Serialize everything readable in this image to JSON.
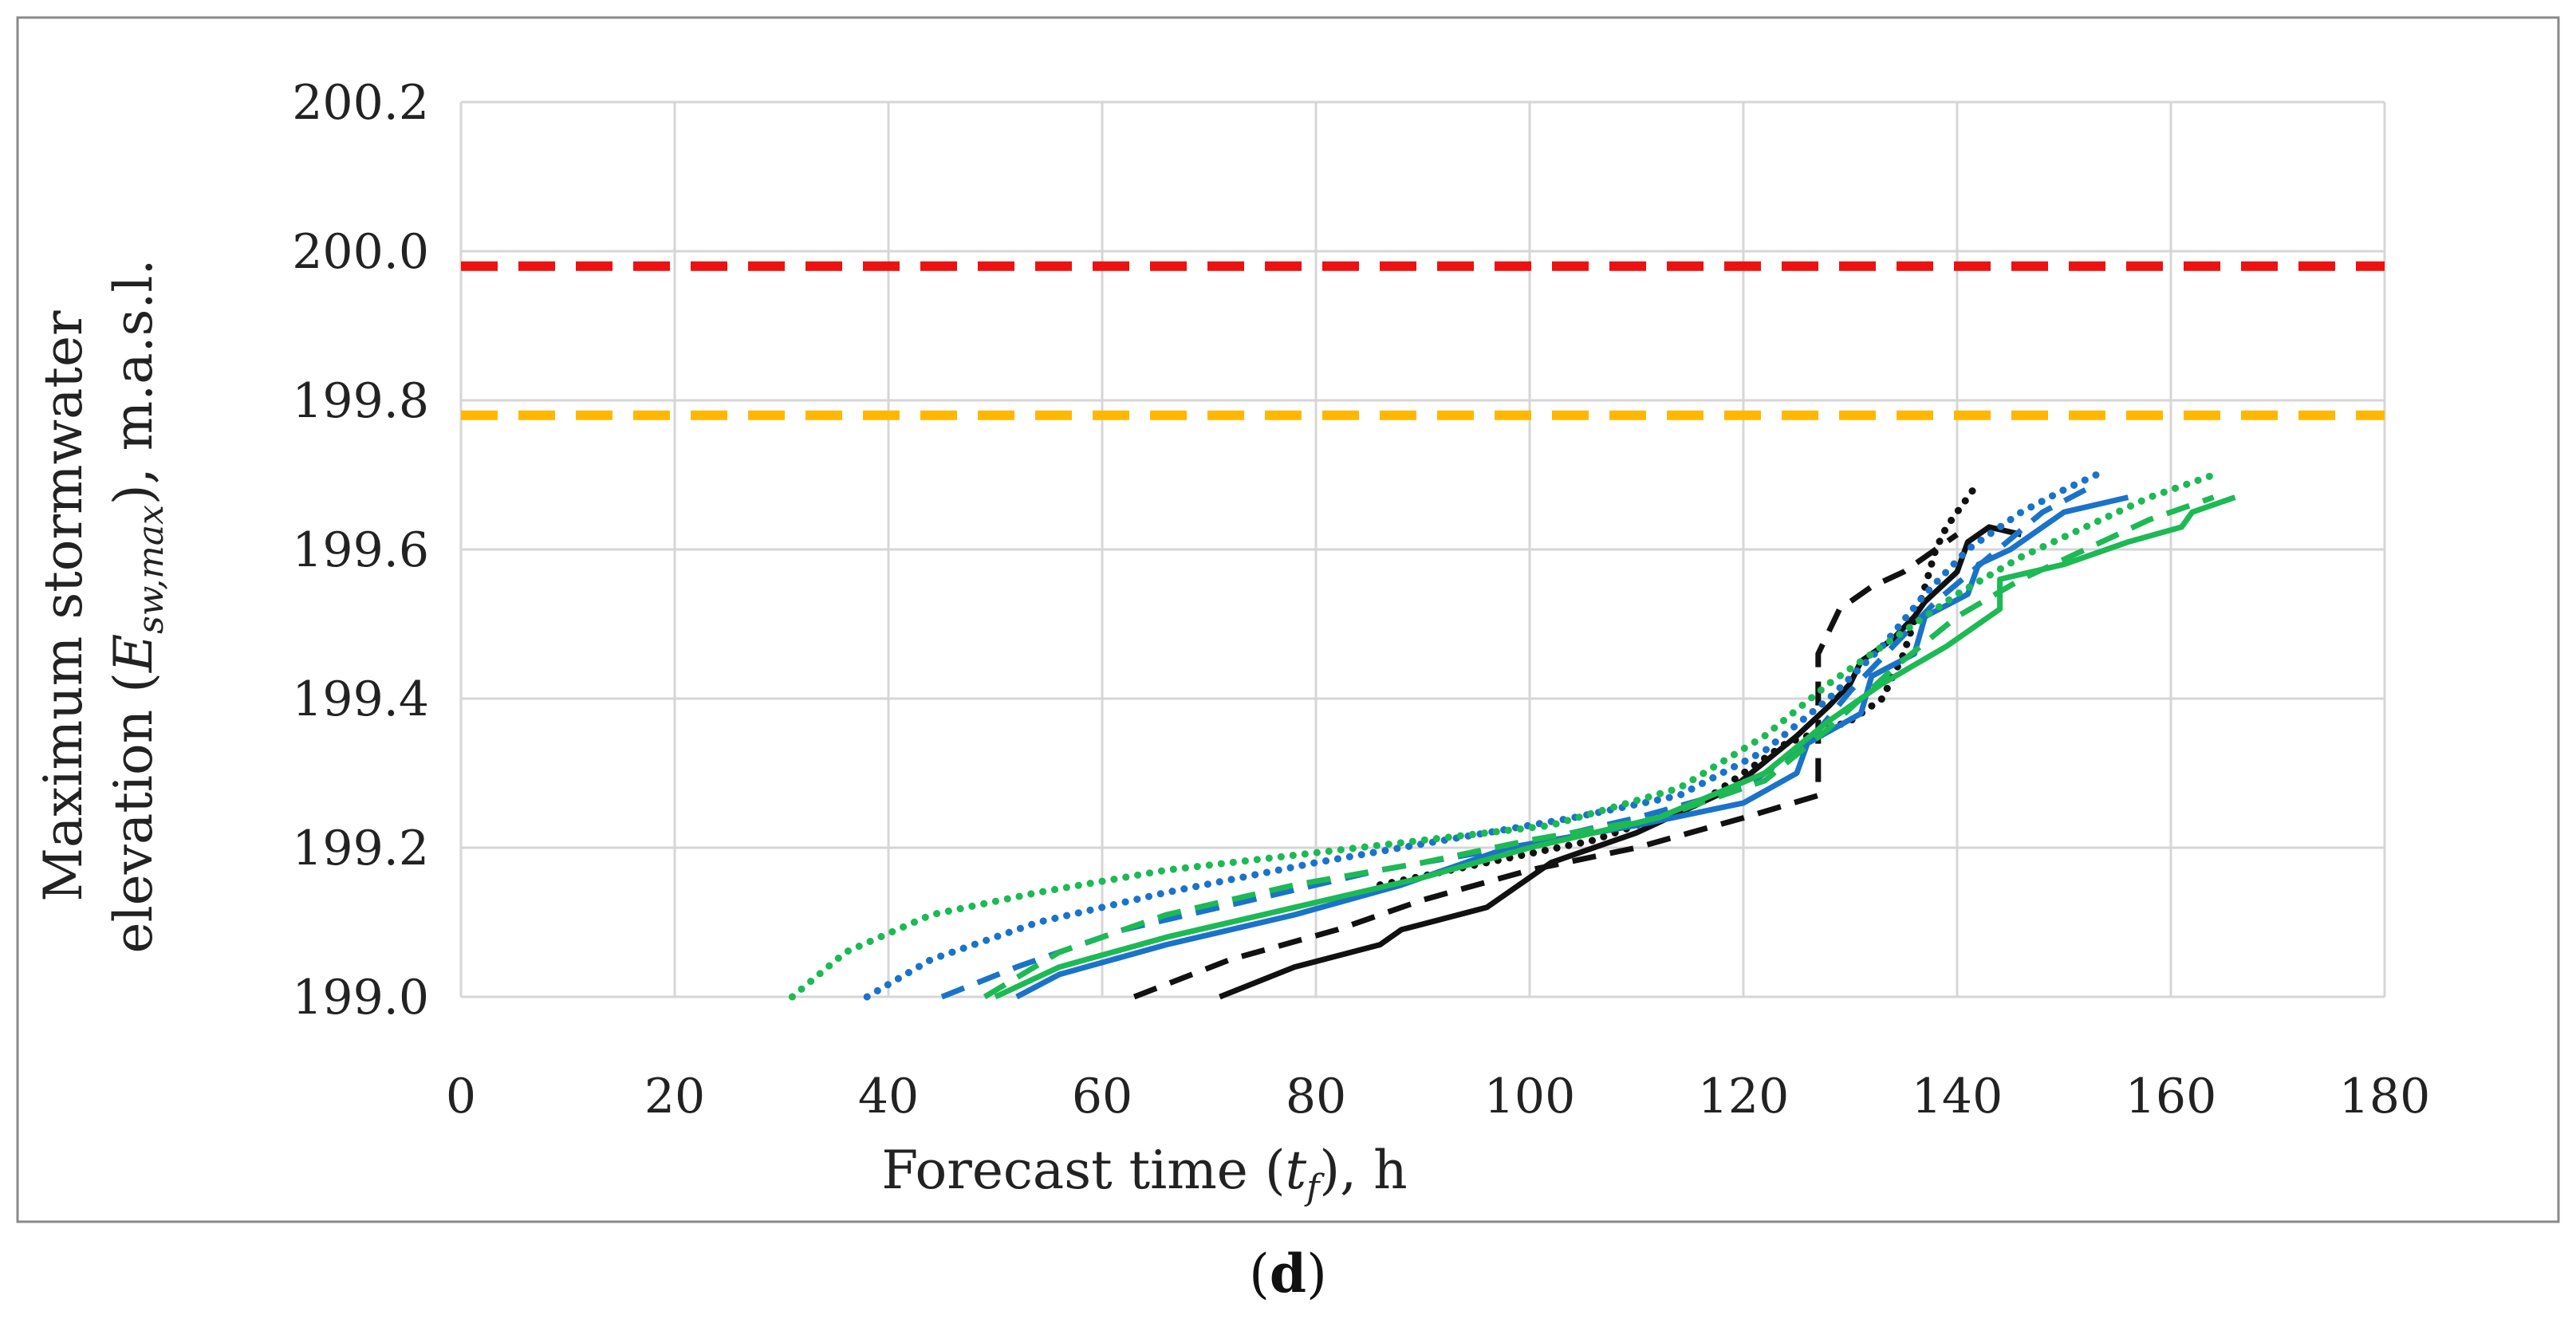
{
  "chart_data": {
    "type": "line",
    "xlabel": {
      "prefix": "Forecast time (",
      "var": "t",
      "sub": "f",
      "suffix": "), h"
    },
    "ylabel": {
      "line1": "Maximum stormwater",
      "line2_prefix": "elevation (",
      "var": "E",
      "sub": "sw,max",
      "line2_suffix": "), m.a.s.l."
    },
    "xlim": [
      0,
      180
    ],
    "ylim": [
      199.0,
      200.2
    ],
    "xticks": [
      "0",
      "20",
      "40",
      "60",
      "80",
      "100",
      "120",
      "140",
      "160",
      "180"
    ],
    "yticks": [
      "199.0",
      "199.2",
      "199.4",
      "199.6",
      "199.8",
      "200.0",
      "200.2"
    ],
    "grid": true,
    "caption": {
      "open": "(",
      "letter": "d",
      "close": ")"
    },
    "thresholds": [
      {
        "name": "upper-threshold",
        "y": 199.98,
        "color": "#ee1111"
      },
      {
        "name": "lower-threshold",
        "y": 199.78,
        "color": "#ffb800"
      }
    ],
    "series": [
      {
        "name": "black-solid",
        "color": "#111111",
        "style": "solid",
        "x": [
          71,
          78,
          86,
          88,
          96,
          102,
          110,
          119,
          125,
          128,
          130,
          131,
          134,
          136,
          137,
          140,
          141,
          143,
          146
        ],
        "y": [
          199.0,
          199.04,
          199.07,
          199.09,
          199.12,
          199.18,
          199.22,
          199.28,
          199.35,
          199.39,
          199.42,
          199.45,
          199.48,
          199.51,
          199.53,
          199.57,
          199.61,
          199.63,
          199.62
        ]
      },
      {
        "name": "black-dashed",
        "color": "#111111",
        "style": "dashed",
        "x": [
          63,
          72,
          82,
          90,
          100,
          110,
          120,
          127,
          127,
          128,
          129,
          132,
          135,
          138,
          140
        ],
        "y": [
          199.0,
          199.05,
          199.09,
          199.13,
          199.17,
          199.2,
          199.24,
          199.27,
          199.46,
          199.49,
          199.52,
          199.55,
          199.57,
          199.6,
          199.62
        ]
      },
      {
        "name": "black-dotted",
        "color": "#111111",
        "style": "dotted",
        "x": [
          86,
          96,
          106,
          116,
          124,
          130,
          133,
          135,
          137,
          138,
          139,
          140,
          141,
          142
        ],
        "y": [
          199.15,
          199.18,
          199.21,
          199.26,
          199.34,
          199.37,
          199.4,
          199.46,
          199.55,
          199.6,
          199.63,
          199.65,
          199.67,
          199.69
        ]
      },
      {
        "name": "blue-solid",
        "color": "#1a73c9",
        "style": "solid",
        "x": [
          52,
          56,
          66,
          78,
          88,
          98,
          110,
          120,
          125,
          126,
          131,
          132,
          136,
          137,
          141,
          142,
          145,
          147,
          150,
          156
        ],
        "y": [
          199.0,
          199.03,
          199.07,
          199.11,
          199.15,
          199.2,
          199.23,
          199.26,
          199.3,
          199.34,
          199.38,
          199.43,
          199.46,
          199.51,
          199.54,
          199.58,
          199.6,
          199.62,
          199.65,
          199.67
        ]
      },
      {
        "name": "blue-dashed",
        "color": "#1a73c9",
        "style": "dashed",
        "x": [
          45,
          52,
          62,
          74,
          86,
          98,
          110,
          120,
          126,
          130,
          134,
          138,
          143,
          148,
          152
        ],
        "y": [
          199.0,
          199.04,
          199.09,
          199.13,
          199.17,
          199.2,
          199.24,
          199.28,
          199.34,
          199.41,
          199.47,
          199.53,
          199.59,
          199.65,
          199.68
        ]
      },
      {
        "name": "blue-dotted",
        "color": "#1a73c9",
        "style": "dotted",
        "x": [
          38,
          44,
          54,
          66,
          80,
          92,
          104,
          114,
          122,
          128,
          133,
          137,
          141,
          146,
          150,
          153
        ],
        "y": [
          199.0,
          199.05,
          199.1,
          199.14,
          199.18,
          199.21,
          199.24,
          199.27,
          199.33,
          199.4,
          199.47,
          199.54,
          199.6,
          199.65,
          199.68,
          199.7
        ]
      },
      {
        "name": "green-solid",
        "color": "#1db954",
        "style": "solid",
        "x": [
          50,
          56,
          66,
          78,
          90,
          100,
          112,
          122,
          128,
          133,
          139,
          144,
          144,
          150,
          156,
          161,
          162,
          166
        ],
        "y": [
          199.0,
          199.04,
          199.08,
          199.12,
          199.16,
          199.2,
          199.24,
          199.3,
          199.37,
          199.42,
          199.47,
          199.52,
          199.56,
          199.58,
          199.61,
          199.63,
          199.65,
          199.67
        ]
      },
      {
        "name": "green-dashed",
        "color": "#1db954",
        "style": "dashed",
        "x": [
          49,
          56,
          66,
          78,
          90,
          100,
          112,
          122,
          128,
          134,
          140,
          146,
          152,
          158,
          164
        ],
        "y": [
          199.0,
          199.06,
          199.11,
          199.15,
          199.18,
          199.21,
          199.24,
          199.29,
          199.36,
          199.44,
          199.51,
          199.56,
          199.6,
          199.64,
          199.67
        ]
      },
      {
        "name": "green-dotted",
        "color": "#1db954",
        "style": "dotted",
        "x": [
          31,
          36,
          44,
          54,
          66,
          78,
          90,
          102,
          114,
          122,
          128,
          134,
          140,
          146,
          152,
          158,
          164
        ],
        "y": [
          199.0,
          199.06,
          199.11,
          199.14,
          199.17,
          199.19,
          199.21,
          199.23,
          199.28,
          199.35,
          199.42,
          199.48,
          199.54,
          199.59,
          199.63,
          199.67,
          199.7
        ]
      }
    ]
  }
}
